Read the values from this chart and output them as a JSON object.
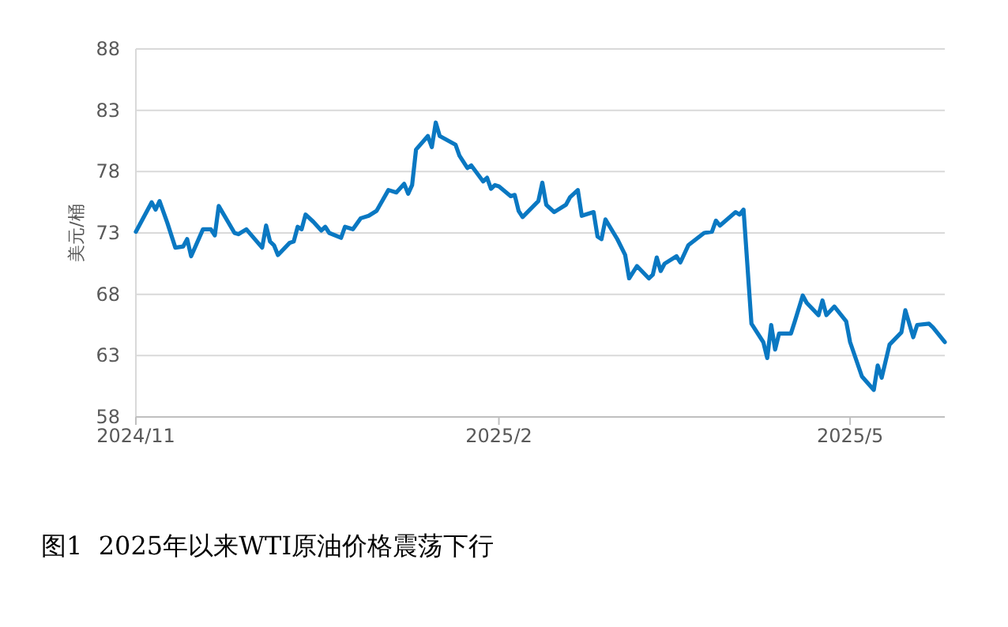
{
  "chart_data": {
    "type": "line",
    "title": "图1  2025年以来WTI原油价格震荡下行",
    "ylabel": "美元/桶",
    "grid": "y",
    "marker": "none",
    "line_style": "solid",
    "xlim": [
      "2024-11-01",
      "2025-05-25"
    ],
    "xticks": [
      {
        "value": "2024-11-01",
        "label": "2024/11"
      },
      {
        "value": "2025-02-01",
        "label": "2025/2"
      },
      {
        "value": "2025-05-01",
        "label": "2025/5"
      }
    ],
    "ylim": [
      58,
      88
    ],
    "yticks": [
      58,
      63,
      68,
      73,
      78,
      83,
      88
    ],
    "x": [
      "2024-11-01",
      "2024-11-05",
      "2024-11-06",
      "2024-11-07",
      "2024-11-09",
      "2024-11-11",
      "2024-11-13",
      "2024-11-14",
      "2024-11-15",
      "2024-11-18",
      "2024-11-20",
      "2024-11-21",
      "2024-11-22",
      "2024-11-26",
      "2024-11-27",
      "2024-11-29",
      "2024-12-03",
      "2024-12-04",
      "2024-12-05",
      "2024-12-06",
      "2024-12-07",
      "2024-12-10",
      "2024-12-11",
      "2024-12-12",
      "2024-12-13",
      "2024-12-14",
      "2024-12-16",
      "2024-12-18",
      "2024-12-19",
      "2024-12-20",
      "2024-12-23",
      "2024-12-24",
      "2024-12-26",
      "2024-12-28",
      "2024-12-30",
      "2025-01-01",
      "2025-01-04",
      "2025-01-06",
      "2025-01-08",
      "2025-01-09",
      "2025-01-10",
      "2025-01-11",
      "2025-01-14",
      "2025-01-15",
      "2025-01-16",
      "2025-01-17",
      "2025-01-21",
      "2025-01-22",
      "2025-01-24",
      "2025-01-25",
      "2025-01-28",
      "2025-01-29",
      "2025-01-30",
      "2025-01-31",
      "2025-02-01",
      "2025-02-04",
      "2025-02-05",
      "2025-02-06",
      "2025-02-07",
      "2025-02-11",
      "2025-02-12",
      "2025-02-13",
      "2025-02-15",
      "2025-02-18",
      "2025-02-19",
      "2025-02-21",
      "2025-02-22",
      "2025-02-25",
      "2025-02-26",
      "2025-02-27",
      "2025-02-28",
      "2025-03-03",
      "2025-03-05",
      "2025-03-06",
      "2025-03-08",
      "2025-03-11",
      "2025-03-12",
      "2025-03-13",
      "2025-03-14",
      "2025-03-15",
      "2025-03-18",
      "2025-03-19",
      "2025-03-21",
      "2025-03-25",
      "2025-03-27",
      "2025-03-28",
      "2025-03-29",
      "2025-04-02",
      "2025-04-03",
      "2025-04-04",
      "2025-04-06",
      "2025-04-09",
      "2025-04-10",
      "2025-04-11",
      "2025-04-12",
      "2025-04-13",
      "2025-04-16",
      "2025-04-17",
      "2025-04-19",
      "2025-04-20",
      "2025-04-23",
      "2025-04-24",
      "2025-04-25",
      "2025-04-27",
      "2025-04-30",
      "2025-05-01",
      "2025-05-04",
      "2025-05-07",
      "2025-05-08",
      "2025-05-09",
      "2025-05-11",
      "2025-05-14",
      "2025-05-15",
      "2025-05-17",
      "2025-05-18",
      "2025-05-21",
      "2025-05-22",
      "2025-05-25"
    ],
    "series": [
      {
        "color": "#0a78c2",
        "values": [
          73.1,
          75.5,
          74.9,
          75.6,
          73.8,
          71.8,
          71.9,
          72.5,
          71.1,
          73.3,
          73.3,
          72.8,
          75.2,
          73.0,
          72.9,
          73.3,
          71.8,
          73.6,
          72.3,
          72.0,
          71.2,
          72.2,
          72.3,
          73.5,
          73.3,
          74.5,
          73.9,
          73.2,
          73.5,
          73.0,
          72.6,
          73.5,
          73.3,
          74.2,
          74.4,
          74.8,
          76.5,
          76.3,
          77.0,
          76.2,
          76.9,
          79.8,
          80.9,
          80.0,
          82.0,
          80.9,
          80.2,
          79.3,
          78.3,
          78.5,
          77.2,
          77.5,
          76.6,
          76.9,
          76.8,
          76.0,
          76.1,
          74.8,
          74.3,
          75.6,
          77.1,
          75.3,
          74.7,
          75.3,
          75.9,
          76.5,
          74.4,
          74.7,
          72.7,
          72.5,
          74.1,
          72.5,
          71.2,
          69.3,
          70.3,
          69.3,
          69.6,
          71.0,
          69.9,
          70.5,
          71.1,
          70.6,
          72.0,
          73.0,
          73.1,
          74.0,
          73.6,
          74.7,
          74.5,
          74.9,
          65.6,
          64.1,
          62.8,
          65.5,
          63.5,
          64.8,
          64.8,
          65.8,
          67.9,
          67.3,
          66.3,
          67.5,
          66.3,
          67.0,
          65.8,
          64.1,
          61.3,
          60.2,
          62.2,
          61.2,
          63.9,
          64.9,
          66.7,
          64.5,
          65.5,
          65.6,
          65.3,
          64.1
        ]
      }
    ]
  }
}
